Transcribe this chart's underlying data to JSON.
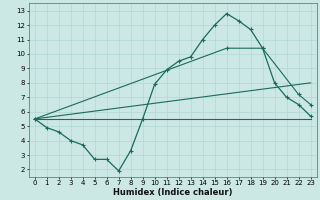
{
  "xlabel": "Humidex (Indice chaleur)",
  "bg_color": "#cce8e4",
  "grid_color": "#b0d8d2",
  "line_color": "#1a6b5a",
  "xlim": [
    -0.5,
    23.5
  ],
  "ylim": [
    1.5,
    13.5
  ],
  "xticks": [
    0,
    1,
    2,
    3,
    4,
    5,
    6,
    7,
    8,
    9,
    10,
    11,
    12,
    13,
    14,
    15,
    16,
    17,
    18,
    19,
    20,
    21,
    22,
    23
  ],
  "yticks": [
    2,
    3,
    4,
    5,
    6,
    7,
    8,
    9,
    10,
    11,
    12,
    13
  ],
  "line1_x": [
    0,
    1,
    2,
    3,
    4,
    5,
    6,
    7,
    8,
    9,
    10,
    11,
    12,
    13,
    14,
    15,
    16,
    17,
    18,
    19,
    20,
    21,
    22,
    23
  ],
  "line1_y": [
    5.5,
    4.9,
    4.6,
    4.0,
    3.7,
    2.7,
    2.7,
    1.9,
    3.3,
    5.5,
    7.9,
    8.9,
    9.5,
    9.8,
    11.0,
    12.0,
    12.8,
    12.3,
    11.7,
    10.4,
    8.0,
    7.0,
    6.5,
    5.7
  ],
  "line2_x": [
    0,
    23
  ],
  "line2_y": [
    5.5,
    8.0
  ],
  "line3_x": [
    0,
    23
  ],
  "line3_y": [
    5.5,
    5.5
  ],
  "line4_x": [
    0,
    16,
    19,
    22,
    23
  ],
  "line4_y": [
    5.5,
    10.4,
    10.4,
    7.2,
    6.5
  ]
}
